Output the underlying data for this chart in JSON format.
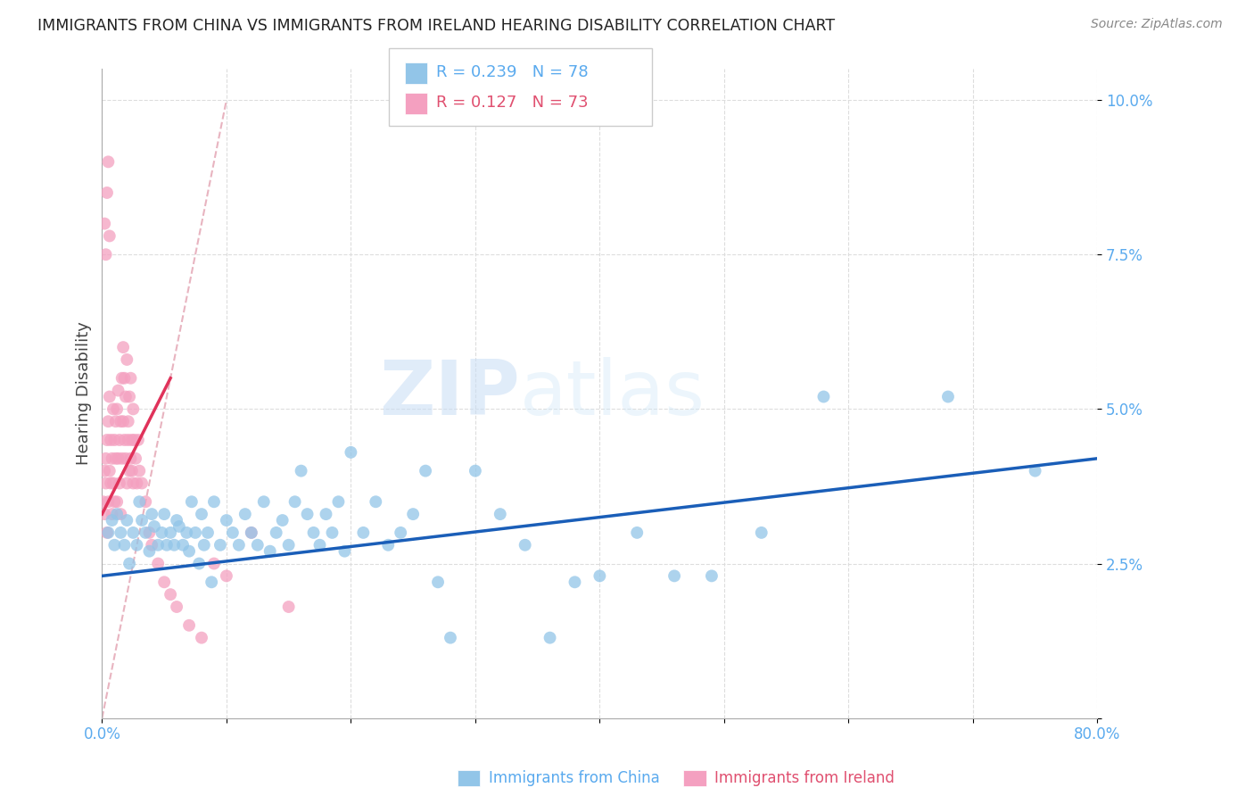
{
  "title": "IMMIGRANTS FROM CHINA VS IMMIGRANTS FROM IRELAND HEARING DISABILITY CORRELATION CHART",
  "source": "Source: ZipAtlas.com",
  "xlabel_china": "Immigrants from China",
  "xlabel_ireland": "Immigrants from Ireland",
  "ylabel": "Hearing Disability",
  "watermark": "ZIPatlas",
  "xlim": [
    0.0,
    0.8
  ],
  "ylim": [
    0.0,
    0.105
  ],
  "xticks": [
    0.0,
    0.1,
    0.2,
    0.3,
    0.4,
    0.5,
    0.6,
    0.7,
    0.8
  ],
  "yticks": [
    0.0,
    0.025,
    0.05,
    0.075,
    0.1
  ],
  "ytick_labels": [
    "",
    "2.5%",
    "5.0%",
    "7.5%",
    "10.0%"
  ],
  "xtick_labels": [
    "0.0%",
    "",
    "",
    "",
    "",
    "",
    "",
    "",
    "80.0%"
  ],
  "china_color": "#92c5e8",
  "ireland_color": "#f4a0c0",
  "china_line_color": "#1a5eb8",
  "ireland_line_color": "#e0325a",
  "diag_line_color": "#e8b4c0",
  "legend_R_china": "R = 0.239",
  "legend_N_china": "N = 78",
  "legend_R_ireland": "R = 0.127",
  "legend_N_ireland": "N = 73",
  "china_scatter_x": [
    0.005,
    0.008,
    0.01,
    0.012,
    0.015,
    0.018,
    0.02,
    0.022,
    0.025,
    0.028,
    0.03,
    0.032,
    0.035,
    0.038,
    0.04,
    0.042,
    0.045,
    0.048,
    0.05,
    0.052,
    0.055,
    0.058,
    0.06,
    0.062,
    0.065,
    0.068,
    0.07,
    0.072,
    0.075,
    0.078,
    0.08,
    0.082,
    0.085,
    0.088,
    0.09,
    0.095,
    0.1,
    0.105,
    0.11,
    0.115,
    0.12,
    0.125,
    0.13,
    0.135,
    0.14,
    0.145,
    0.15,
    0.155,
    0.16,
    0.165,
    0.17,
    0.175,
    0.18,
    0.185,
    0.19,
    0.195,
    0.2,
    0.21,
    0.22,
    0.23,
    0.24,
    0.25,
    0.26,
    0.27,
    0.28,
    0.3,
    0.32,
    0.34,
    0.36,
    0.38,
    0.4,
    0.43,
    0.46,
    0.49,
    0.53,
    0.58,
    0.68,
    0.75
  ],
  "china_scatter_y": [
    0.03,
    0.032,
    0.028,
    0.033,
    0.03,
    0.028,
    0.032,
    0.025,
    0.03,
    0.028,
    0.035,
    0.032,
    0.03,
    0.027,
    0.033,
    0.031,
    0.028,
    0.03,
    0.033,
    0.028,
    0.03,
    0.028,
    0.032,
    0.031,
    0.028,
    0.03,
    0.027,
    0.035,
    0.03,
    0.025,
    0.033,
    0.028,
    0.03,
    0.022,
    0.035,
    0.028,
    0.032,
    0.03,
    0.028,
    0.033,
    0.03,
    0.028,
    0.035,
    0.027,
    0.03,
    0.032,
    0.028,
    0.035,
    0.04,
    0.033,
    0.03,
    0.028,
    0.033,
    0.03,
    0.035,
    0.027,
    0.043,
    0.03,
    0.035,
    0.028,
    0.03,
    0.033,
    0.04,
    0.022,
    0.013,
    0.04,
    0.033,
    0.028,
    0.013,
    0.022,
    0.023,
    0.03,
    0.023,
    0.023,
    0.03,
    0.052,
    0.052,
    0.04
  ],
  "ireland_scatter_x": [
    0.001,
    0.002,
    0.002,
    0.003,
    0.003,
    0.004,
    0.004,
    0.005,
    0.005,
    0.006,
    0.006,
    0.007,
    0.007,
    0.008,
    0.008,
    0.009,
    0.009,
    0.01,
    0.01,
    0.011,
    0.011,
    0.012,
    0.012,
    0.013,
    0.013,
    0.014,
    0.014,
    0.015,
    0.015,
    0.016,
    0.016,
    0.017,
    0.017,
    0.018,
    0.018,
    0.019,
    0.019,
    0.02,
    0.02,
    0.021,
    0.021,
    0.022,
    0.022,
    0.023,
    0.023,
    0.024,
    0.024,
    0.025,
    0.025,
    0.026,
    0.027,
    0.028,
    0.029,
    0.03,
    0.032,
    0.035,
    0.038,
    0.04,
    0.045,
    0.05,
    0.055,
    0.06,
    0.07,
    0.08,
    0.09,
    0.1,
    0.12,
    0.15,
    0.002,
    0.003,
    0.004,
    0.005,
    0.006
  ],
  "ireland_scatter_y": [
    0.035,
    0.04,
    0.033,
    0.038,
    0.042,
    0.03,
    0.045,
    0.035,
    0.048,
    0.04,
    0.052,
    0.038,
    0.045,
    0.033,
    0.042,
    0.038,
    0.05,
    0.035,
    0.045,
    0.042,
    0.048,
    0.035,
    0.05,
    0.042,
    0.053,
    0.038,
    0.045,
    0.033,
    0.048,
    0.055,
    0.042,
    0.06,
    0.048,
    0.055,
    0.045,
    0.052,
    0.042,
    0.058,
    0.038,
    0.048,
    0.045,
    0.04,
    0.052,
    0.042,
    0.055,
    0.04,
    0.045,
    0.038,
    0.05,
    0.045,
    0.042,
    0.038,
    0.045,
    0.04,
    0.038,
    0.035,
    0.03,
    0.028,
    0.025,
    0.022,
    0.02,
    0.018,
    0.015,
    0.013,
    0.025,
    0.023,
    0.03,
    0.018,
    0.08,
    0.075,
    0.085,
    0.09,
    0.078
  ],
  "china_trend_x": [
    0.0,
    0.8
  ],
  "china_trend_y": [
    0.023,
    0.042
  ],
  "ireland_trend_x": [
    0.0,
    0.055
  ],
  "ireland_trend_y": [
    0.033,
    0.055
  ],
  "diag_line_x": [
    0.0,
    0.1
  ],
  "diag_line_y": [
    0.0,
    0.1
  ]
}
